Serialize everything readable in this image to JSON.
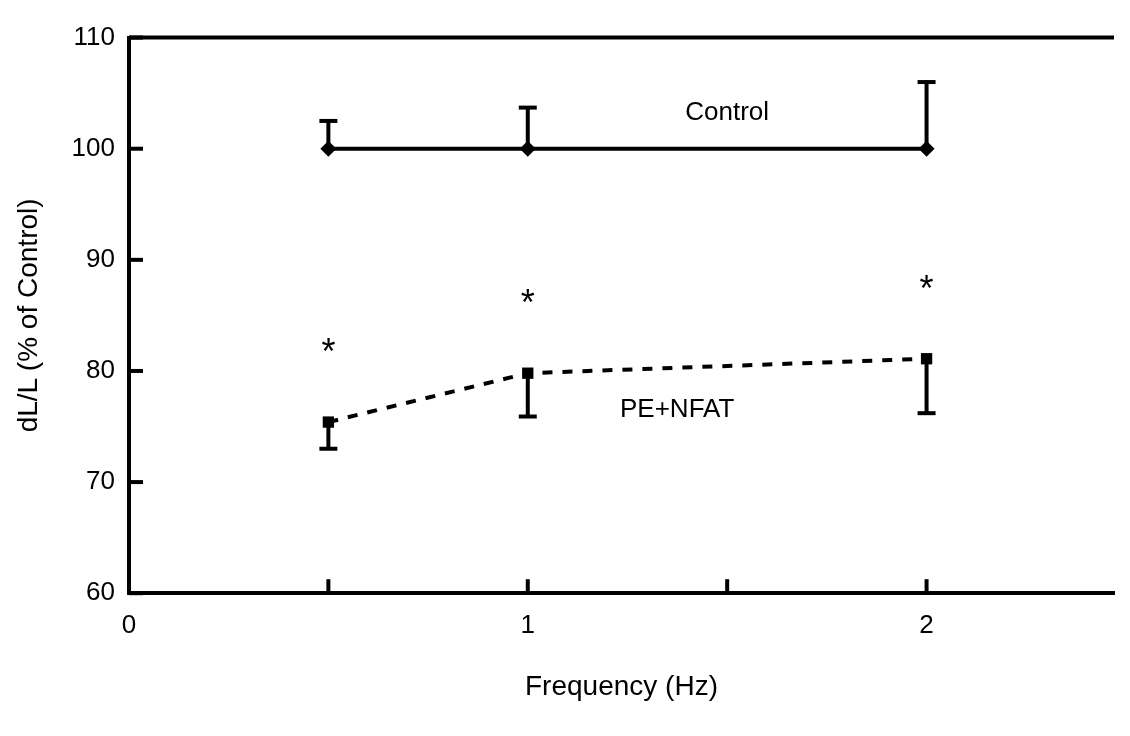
{
  "chart_data": {
    "type": "line",
    "xlabel": "Frequency (Hz)",
    "ylabel": "dL/L (% of Control)",
    "x": [
      0.5,
      1,
      2
    ],
    "series": [
      {
        "name": "Control",
        "color": "#000000",
        "values": [
          100,
          100,
          100
        ],
        "errors": [
          [
            100,
            102.5
          ],
          [
            100,
            103.7
          ],
          [
            100,
            106.0
          ]
        ],
        "marker": "diamond",
        "line_style": "solid"
      },
      {
        "name": "PE+NFAT",
        "color": "#000000",
        "values": [
          75.4,
          79.8,
          81.1
        ],
        "errors": [
          [
            73.0,
            75.4
          ],
          [
            75.9,
            79.8
          ],
          [
            76.2,
            81.1
          ]
        ],
        "marker": "square",
        "line_style": "dashed"
      }
    ],
    "xlim": [
      0,
      2.47
    ],
    "xticks": [
      0,
      {
        "value": 0.5,
        "label": null
      },
      1,
      {
        "value": 1.5,
        "label": null
      },
      2
    ],
    "ylim": [
      60,
      110
    ],
    "yticks": [
      60,
      70,
      80,
      90,
      100,
      110
    ],
    "annotations": [
      "*",
      "*",
      "*"
    ],
    "grid": false,
    "legend": false
  }
}
